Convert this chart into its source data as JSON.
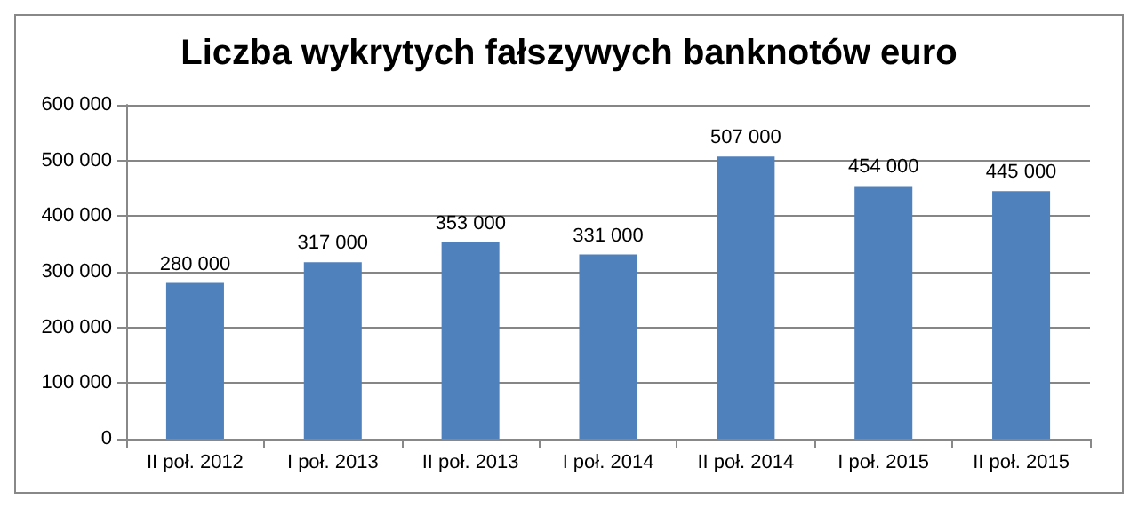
{
  "chart_data": {
    "type": "bar",
    "title": "Liczba wykrytych fałszywych banknotów euro",
    "categories": [
      "II poł. 2012",
      "I poł. 2013",
      "II poł. 2013",
      "I poł. 2014",
      "II poł. 2014",
      "I poł. 2015",
      "II poł. 2015"
    ],
    "values": [
      280000,
      317000,
      353000,
      331000,
      507000,
      454000,
      445000
    ],
    "value_labels": [
      "280 000",
      "317 000",
      "353 000",
      "331 000",
      "507 000",
      "454 000",
      "445 000"
    ],
    "color": "#4f81bd",
    "ylim": [
      0,
      600000
    ],
    "yticks": [
      {
        "value": 0,
        "label": "0"
      },
      {
        "value": 100000,
        "label": "100 000"
      },
      {
        "value": 200000,
        "label": "200 000"
      },
      {
        "value": 300000,
        "label": "300 000"
      },
      {
        "value": 400000,
        "label": "400 000"
      },
      {
        "value": 500000,
        "label": "500 000"
      },
      {
        "value": 600000,
        "label": "600 000"
      }
    ],
    "grid": true
  }
}
